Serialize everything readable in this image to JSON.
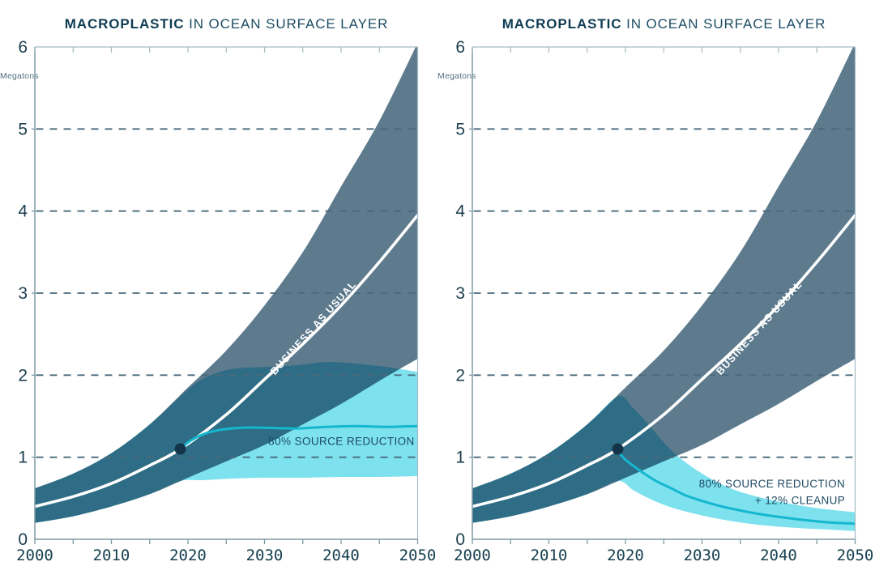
{
  "page": {
    "background": "#ffffff"
  },
  "styles": {
    "grid_color": "#4a6a7c",
    "axis_color": "#7e98a4",
    "border_light_color": "#a5bac2",
    "tick_color": "#7e98a4",
    "x_tick_label_color": "#17404f",
    "y_tick_label_color": "#1d3e4e",
    "title_color": "#12415a",
    "unit_color": "#54717f"
  },
  "chart_data": [
    {
      "id": "left",
      "type": "area",
      "title": {
        "bold": "MACROPLASTIC",
        "rest": " IN OCEAN SURFACE LAYER"
      },
      "unit_label": "Megatons",
      "xlim": [
        2000,
        2050
      ],
      "ylim": [
        0,
        6
      ],
      "x_ticks": [
        2000,
        2010,
        2020,
        2030,
        2040,
        2050
      ],
      "x_minor_tick_step": 5,
      "y_ticks": [
        0,
        1,
        2,
        3,
        4,
        5,
        6
      ],
      "grid_y": [
        1,
        2,
        3,
        4,
        5
      ],
      "grid_on": true,
      "legend": "labels-inside-plot",
      "series": [
        {
          "name": "business-as-usual-band",
          "kind": "band",
          "color": "#5e7b8e",
          "blend": "normal",
          "top": [
            [
              2000,
              0.62
            ],
            [
              2005,
              0.8
            ],
            [
              2010,
              1.05
            ],
            [
              2015,
              1.4
            ],
            [
              2020,
              1.85
            ],
            [
              2025,
              2.3
            ],
            [
              2030,
              2.85
            ],
            [
              2035,
              3.5
            ],
            [
              2040,
              4.3
            ],
            [
              2045,
              5.1
            ],
            [
              2050,
              6.05
            ]
          ],
          "bottom": [
            [
              2000,
              0.2
            ],
            [
              2005,
              0.28
            ],
            [
              2010,
              0.4
            ],
            [
              2015,
              0.55
            ],
            [
              2020,
              0.75
            ],
            [
              2025,
              0.95
            ],
            [
              2030,
              1.15
            ],
            [
              2035,
              1.4
            ],
            [
              2040,
              1.65
            ],
            [
              2045,
              1.93
            ],
            [
              2050,
              2.2
            ]
          ]
        },
        {
          "name": "source-reduction-band",
          "kind": "band",
          "color": "#7de1ee",
          "blend": "multiply",
          "top": [
            [
              2000,
              0.62
            ],
            [
              2005,
              0.8
            ],
            [
              2010,
              1.05
            ],
            [
              2015,
              1.4
            ],
            [
              2019,
              1.74
            ],
            [
              2021,
              1.9
            ],
            [
              2023,
              2.0
            ],
            [
              2026,
              2.08
            ],
            [
              2030,
              2.1
            ],
            [
              2034,
              2.12
            ],
            [
              2038,
              2.16
            ],
            [
              2042,
              2.14
            ],
            [
              2046,
              2.1
            ],
            [
              2050,
              2.04
            ]
          ],
          "bottom": [
            [
              2000,
              0.2
            ],
            [
              2005,
              0.28
            ],
            [
              2010,
              0.4
            ],
            [
              2015,
              0.55
            ],
            [
              2019,
              0.71
            ],
            [
              2022,
              0.72
            ],
            [
              2026,
              0.74
            ],
            [
              2030,
              0.75
            ],
            [
              2035,
              0.75
            ],
            [
              2040,
              0.76
            ],
            [
              2045,
              0.76
            ],
            [
              2050,
              0.77
            ]
          ]
        },
        {
          "name": "business-as-usual-line",
          "kind": "line",
          "color": "#ffffff",
          "width": 3.6,
          "points": [
            [
              2000,
              0.4
            ],
            [
              2005,
              0.52
            ],
            [
              2010,
              0.68
            ],
            [
              2015,
              0.9
            ],
            [
              2019,
              1.1
            ],
            [
              2025,
              1.52
            ],
            [
              2030,
              1.95
            ],
            [
              2035,
              2.38
            ],
            [
              2040,
              2.85
            ],
            [
              2045,
              3.38
            ],
            [
              2050,
              3.95
            ]
          ]
        },
        {
          "name": "source-reduction-line",
          "kind": "line",
          "color": "#15b7d0",
          "width": 3,
          "points": [
            [
              2019,
              1.08
            ],
            [
              2020,
              1.18
            ],
            [
              2022,
              1.28
            ],
            [
              2024,
              1.33
            ],
            [
              2027,
              1.36
            ],
            [
              2030,
              1.36
            ],
            [
              2034,
              1.35
            ],
            [
              2038,
              1.37
            ],
            [
              2042,
              1.38
            ],
            [
              2046,
              1.37
            ],
            [
              2050,
              1.38
            ]
          ]
        },
        {
          "name": "now-marker",
          "kind": "dot",
          "color": "#14344a",
          "r": 7,
          "at": [
            2019,
            1.1
          ]
        }
      ],
      "annotations": [
        {
          "name": "annotation-business-as-usual",
          "text": "BUSINESS AS USUAL",
          "x": 2036.7,
          "y": 2.55,
          "rotate": -48,
          "color": "#ffffff",
          "size": 12.5,
          "weight": 700,
          "spacing": 1.2,
          "anchor": "middle"
        },
        {
          "name": "annotation-source-reduction",
          "text": "80% SOURCE REDUCTION",
          "x": 2049.6,
          "y": 1.15,
          "rotate": 0,
          "color": "#1d4a63",
          "size": 13.5,
          "weight": 400,
          "spacing": 0.4,
          "anchor": "end"
        }
      ]
    },
    {
      "id": "right",
      "type": "area",
      "title": {
        "bold": "MACROPLASTIC",
        "rest": " IN OCEAN SURFACE LAYER"
      },
      "unit_label": "Megatons",
      "xlim": [
        2000,
        2050
      ],
      "ylim": [
        0,
        6
      ],
      "x_ticks": [
        2000,
        2010,
        2020,
        2030,
        2040,
        2050
      ],
      "x_minor_tick_step": 5,
      "y_ticks": [
        0,
        1,
        2,
        3,
        4,
        5,
        6
      ],
      "grid_y": [
        1,
        2,
        3,
        4,
        5
      ],
      "grid_on": true,
      "legend": "labels-inside-plot",
      "series": [
        {
          "name": "business-as-usual-band",
          "kind": "band",
          "color": "#5e7b8e",
          "blend": "normal",
          "top": [
            [
              2000,
              0.62
            ],
            [
              2005,
              0.8
            ],
            [
              2010,
              1.05
            ],
            [
              2015,
              1.4
            ],
            [
              2020,
              1.85
            ],
            [
              2025,
              2.3
            ],
            [
              2030,
              2.85
            ],
            [
              2035,
              3.5
            ],
            [
              2040,
              4.3
            ],
            [
              2045,
              5.1
            ],
            [
              2050,
              6.05
            ]
          ],
          "bottom": [
            [
              2000,
              0.2
            ],
            [
              2005,
              0.28
            ],
            [
              2010,
              0.4
            ],
            [
              2015,
              0.55
            ],
            [
              2020,
              0.75
            ],
            [
              2025,
              0.95
            ],
            [
              2030,
              1.15
            ],
            [
              2035,
              1.4
            ],
            [
              2040,
              1.65
            ],
            [
              2045,
              1.93
            ],
            [
              2050,
              2.2
            ]
          ]
        },
        {
          "name": "source-reduction-cleanup-band",
          "kind": "band",
          "color": "#7de1ee",
          "blend": "multiply",
          "top": [
            [
              2000,
              0.62
            ],
            [
              2005,
              0.8
            ],
            [
              2010,
              1.05
            ],
            [
              2015,
              1.4
            ],
            [
              2019,
              1.74
            ],
            [
              2021,
              1.6
            ],
            [
              2023,
              1.4
            ],
            [
              2025,
              1.18
            ],
            [
              2027,
              1.0
            ],
            [
              2030,
              0.8
            ],
            [
              2033,
              0.65
            ],
            [
              2036,
              0.55
            ],
            [
              2040,
              0.46
            ],
            [
              2045,
              0.38
            ],
            [
              2050,
              0.33
            ]
          ],
          "bottom": [
            [
              2000,
              0.2
            ],
            [
              2005,
              0.28
            ],
            [
              2010,
              0.4
            ],
            [
              2015,
              0.55
            ],
            [
              2019,
              0.71
            ],
            [
              2021,
              0.6
            ],
            [
              2023,
              0.5
            ],
            [
              2025,
              0.42
            ],
            [
              2027,
              0.36
            ],
            [
              2030,
              0.29
            ],
            [
              2034,
              0.22
            ],
            [
              2038,
              0.17
            ],
            [
              2042,
              0.14
            ],
            [
              2046,
              0.12
            ],
            [
              2050,
              0.1
            ]
          ]
        },
        {
          "name": "business-as-usual-line",
          "kind": "line",
          "color": "#ffffff",
          "width": 3.6,
          "points": [
            [
              2000,
              0.4
            ],
            [
              2005,
              0.52
            ],
            [
              2010,
              0.68
            ],
            [
              2015,
              0.9
            ],
            [
              2019,
              1.1
            ],
            [
              2025,
              1.52
            ],
            [
              2030,
              1.95
            ],
            [
              2035,
              2.38
            ],
            [
              2040,
              2.85
            ],
            [
              2045,
              3.38
            ],
            [
              2050,
              3.95
            ]
          ]
        },
        {
          "name": "source-reduction-cleanup-line",
          "kind": "line",
          "color": "#15b7d0",
          "width": 3,
          "points": [
            [
              2019,
              1.08
            ],
            [
              2020,
              0.97
            ],
            [
              2022,
              0.83
            ],
            [
              2024,
              0.71
            ],
            [
              2026,
              0.62
            ],
            [
              2028,
              0.53
            ],
            [
              2031,
              0.44
            ],
            [
              2034,
              0.37
            ],
            [
              2038,
              0.3
            ],
            [
              2042,
              0.25
            ],
            [
              2046,
              0.21
            ],
            [
              2050,
              0.19
            ]
          ]
        },
        {
          "name": "now-marker",
          "kind": "dot",
          "color": "#14344a",
          "r": 7,
          "at": [
            2019,
            1.1
          ]
        }
      ],
      "annotations": [
        {
          "name": "annotation-business-as-usual",
          "text": "BUSINESS AS USUAL",
          "x": 2037.8,
          "y": 2.55,
          "rotate": -48,
          "color": "#ffffff",
          "size": 12.5,
          "weight": 700,
          "spacing": 1.2,
          "anchor": "middle"
        },
        {
          "name": "annotation-source-reduction-cleanup-1",
          "text": "80% SOURCE REDUCTION",
          "x": 2048.7,
          "y": 0.63,
          "rotate": 0,
          "color": "#1d4a63",
          "size": 13.5,
          "weight": 400,
          "spacing": 0.4,
          "anchor": "end"
        },
        {
          "name": "annotation-source-reduction-cleanup-2",
          "text": "+ 12% CLEANUP",
          "x": 2048.7,
          "y": 0.43,
          "rotate": 0,
          "color": "#1d4a63",
          "size": 13.5,
          "weight": 400,
          "spacing": 0.4,
          "anchor": "end"
        }
      ]
    }
  ]
}
